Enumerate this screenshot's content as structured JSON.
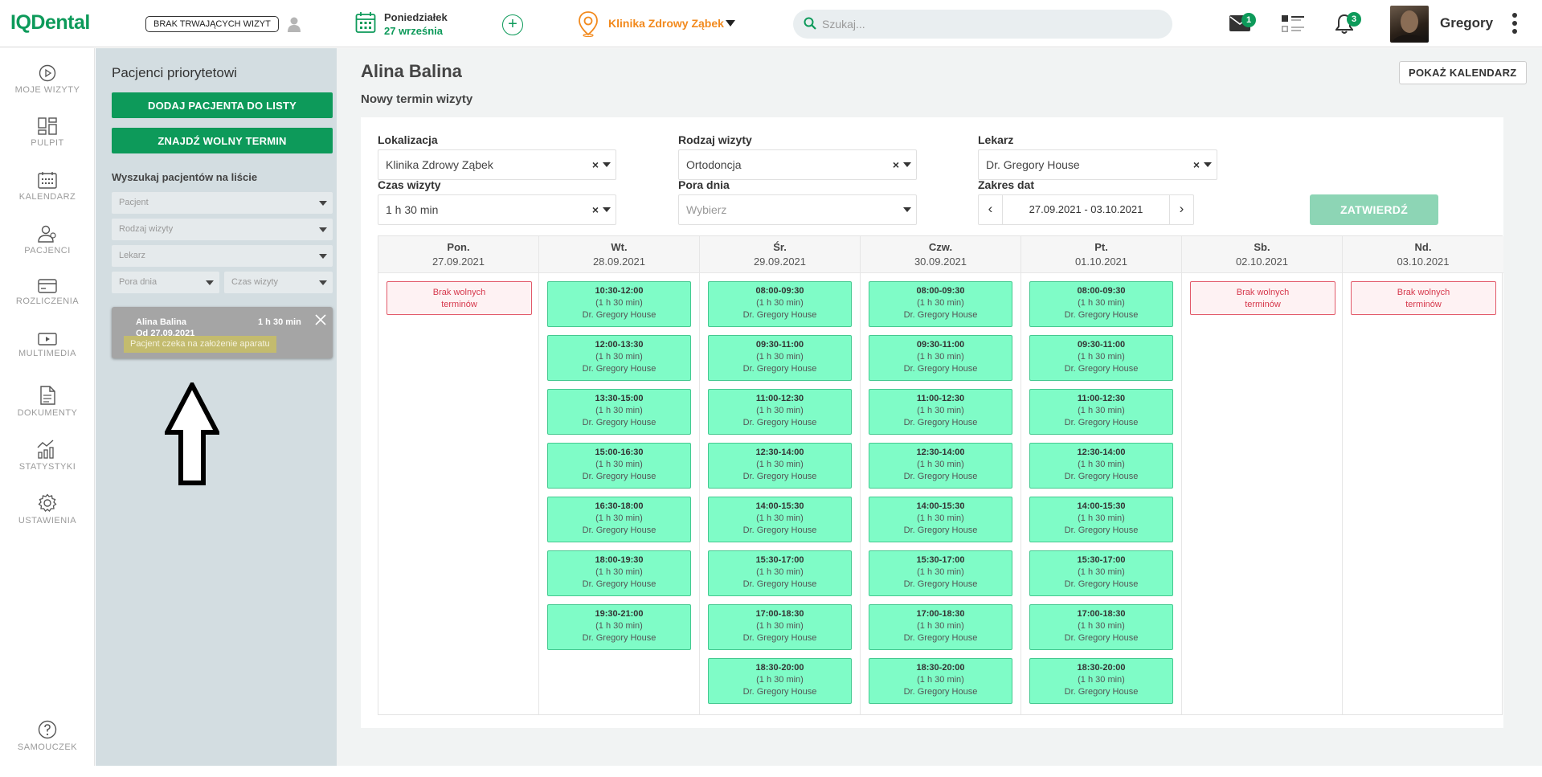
{
  "header": {
    "logo": "IQDental",
    "no_visits_label": "BRAK TRWAJĄCYCH WIZYT",
    "date_day": "Poniedziałek",
    "date_full": "27 września",
    "clinic": "Klinika Zdrowy Ząbek",
    "search_placeholder": "Szukaj...",
    "mail_count": "1",
    "notif_count": "3",
    "user_name": "Gregory",
    "accent": "#0d9a5a",
    "clinic_color": "#f28a1e"
  },
  "nav": {
    "items": [
      {
        "label": "MOJE WIZYTY",
        "icon": "play-circle-icon"
      },
      {
        "label": "PULPIT",
        "icon": "dashboard-icon"
      },
      {
        "label": "KALENDARZ",
        "icon": "calendar-icon"
      },
      {
        "label": "PACJENCI",
        "icon": "patients-icon"
      },
      {
        "label": "ROZLICZENIA",
        "icon": "credit-card-icon"
      },
      {
        "label": "MULTIMEDIA",
        "icon": "multimedia-icon"
      },
      {
        "label": "DOKUMENTY",
        "icon": "document-icon"
      },
      {
        "label": "STATYSTYKI",
        "icon": "stats-icon"
      },
      {
        "label": "USTAWIENIA",
        "icon": "gear-icon"
      }
    ],
    "help_label": "SAMOUCZEK"
  },
  "priority": {
    "title": "Pacjenci priorytetowi",
    "add_button": "DODAJ PACJENTA DO LISTY",
    "find_button": "ZNAJDŹ WOLNY TERMIN",
    "search_title": "Wyszukaj pacjentów na liście",
    "filters": {
      "patient": "Pacjent",
      "visit_type": "Rodzaj wizyty",
      "doctor": "Lekarz",
      "time_of_day": "Pora dnia",
      "duration": "Czas wizyty"
    },
    "card": {
      "name": "Alina Balina",
      "duration": "1 h 30 min",
      "from": "Od 27.09.2021",
      "note": "Pacjent czeka na założenie aparatu"
    }
  },
  "main": {
    "title": "Alina Balina",
    "subtitle": "Nowy termin wizyty",
    "show_calendar": "POKAŻ KALENDARZ",
    "fields": {
      "location_label": "Lokalizacja",
      "location_value": "Klinika Zdrowy Ząbek",
      "visit_type_label": "Rodzaj wizyty",
      "visit_type_value": "Ortodoncja",
      "doctor_label": "Lekarz",
      "doctor_value": "Dr. Gregory House",
      "duration_label": "Czas wizyty",
      "duration_value": "1 h 30 min",
      "time_of_day_label": "Pora dnia",
      "time_of_day_placeholder": "Wybierz",
      "date_range_label": "Zakres dat",
      "date_range_value": "27.09.2021 - 03.10.2021"
    },
    "confirm": "ZATWIERDŹ",
    "no_slots_line1": "Brak wolnych",
    "no_slots_line2": "terminów",
    "days": [
      {
        "name": "Pon.",
        "date": "27.09.2021",
        "slots": []
      },
      {
        "name": "Wt.",
        "date": "28.09.2021",
        "slots": [
          {
            "time": "10:30-12:00",
            "dur": "(1 h 30 min)",
            "doctor": "Dr. Gregory House"
          },
          {
            "time": "12:00-13:30",
            "dur": "(1 h 30 min)",
            "doctor": "Dr. Gregory House"
          },
          {
            "time": "13:30-15:00",
            "dur": "(1 h 30 min)",
            "doctor": "Dr. Gregory House"
          },
          {
            "time": "15:00-16:30",
            "dur": "(1 h 30 min)",
            "doctor": "Dr. Gregory House"
          },
          {
            "time": "16:30-18:00",
            "dur": "(1 h 30 min)",
            "doctor": "Dr. Gregory House"
          },
          {
            "time": "18:00-19:30",
            "dur": "(1 h 30 min)",
            "doctor": "Dr. Gregory House"
          },
          {
            "time": "19:30-21:00",
            "dur": "(1 h 30 min)",
            "doctor": "Dr. Gregory House"
          }
        ]
      },
      {
        "name": "Śr.",
        "date": "29.09.2021",
        "slots": [
          {
            "time": "08:00-09:30",
            "dur": "(1 h 30 min)",
            "doctor": "Dr. Gregory House"
          },
          {
            "time": "09:30-11:00",
            "dur": "(1 h 30 min)",
            "doctor": "Dr. Gregory House"
          },
          {
            "time": "11:00-12:30",
            "dur": "(1 h 30 min)",
            "doctor": "Dr. Gregory House"
          },
          {
            "time": "12:30-14:00",
            "dur": "(1 h 30 min)",
            "doctor": "Dr. Gregory House"
          },
          {
            "time": "14:00-15:30",
            "dur": "(1 h 30 min)",
            "doctor": "Dr. Gregory House"
          },
          {
            "time": "15:30-17:00",
            "dur": "(1 h 30 min)",
            "doctor": "Dr. Gregory House"
          },
          {
            "time": "17:00-18:30",
            "dur": "(1 h 30 min)",
            "doctor": "Dr. Gregory House"
          },
          {
            "time": "18:30-20:00",
            "dur": "(1 h 30 min)",
            "doctor": "Dr. Gregory House"
          }
        ]
      },
      {
        "name": "Czw.",
        "date": "30.09.2021",
        "slots": [
          {
            "time": "08:00-09:30",
            "dur": "(1 h 30 min)",
            "doctor": "Dr. Gregory House"
          },
          {
            "time": "09:30-11:00",
            "dur": "(1 h 30 min)",
            "doctor": "Dr. Gregory House"
          },
          {
            "time": "11:00-12:30",
            "dur": "(1 h 30 min)",
            "doctor": "Dr. Gregory House"
          },
          {
            "time": "12:30-14:00",
            "dur": "(1 h 30 min)",
            "doctor": "Dr. Gregory House"
          },
          {
            "time": "14:00-15:30",
            "dur": "(1 h 30 min)",
            "doctor": "Dr. Gregory House"
          },
          {
            "time": "15:30-17:00",
            "dur": "(1 h 30 min)",
            "doctor": "Dr. Gregory House"
          },
          {
            "time": "17:00-18:30",
            "dur": "(1 h 30 min)",
            "doctor": "Dr. Gregory House"
          },
          {
            "time": "18:30-20:00",
            "dur": "(1 h 30 min)",
            "doctor": "Dr. Gregory House"
          }
        ]
      },
      {
        "name": "Pt.",
        "date": "01.10.2021",
        "slots": [
          {
            "time": "08:00-09:30",
            "dur": "(1 h 30 min)",
            "doctor": "Dr. Gregory House"
          },
          {
            "time": "09:30-11:00",
            "dur": "(1 h 30 min)",
            "doctor": "Dr. Gregory House"
          },
          {
            "time": "11:00-12:30",
            "dur": "(1 h 30 min)",
            "doctor": "Dr. Gregory House"
          },
          {
            "time": "12:30-14:00",
            "dur": "(1 h 30 min)",
            "doctor": "Dr. Gregory House"
          },
          {
            "time": "14:00-15:30",
            "dur": "(1 h 30 min)",
            "doctor": "Dr. Gregory House"
          },
          {
            "time": "15:30-17:00",
            "dur": "(1 h 30 min)",
            "doctor": "Dr. Gregory House"
          },
          {
            "time": "17:00-18:30",
            "dur": "(1 h 30 min)",
            "doctor": "Dr. Gregory House"
          },
          {
            "time": "18:30-20:00",
            "dur": "(1 h 30 min)",
            "doctor": "Dr. Gregory House"
          }
        ]
      },
      {
        "name": "Sb.",
        "date": "02.10.2021",
        "slots": []
      },
      {
        "name": "Nd.",
        "date": "03.10.2021",
        "slots": []
      }
    ]
  }
}
